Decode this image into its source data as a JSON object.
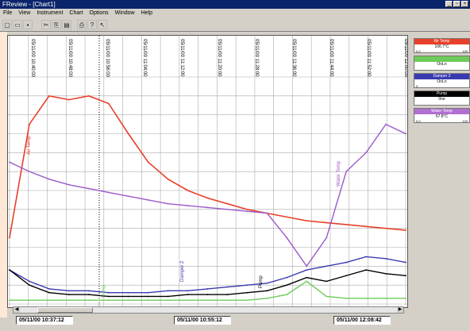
{
  "window": {
    "title": "FReview - [Chart1]",
    "controls_mdi": [
      "_",
      "▫",
      "×"
    ],
    "controls": [
      "_",
      "▫",
      "×"
    ]
  },
  "menu": {
    "items": [
      "File",
      "View",
      "Instrument",
      "Chart",
      "Options",
      "Window",
      "Help"
    ]
  },
  "toolbar": {
    "icons": [
      "new-icon",
      "open-icon",
      "save-icon",
      "cut-icon",
      "copy-icon",
      "paste-icon",
      "print-icon",
      "help-icon",
      "context-help-icon"
    ]
  },
  "chart": {
    "time_labels": [
      "05/11/00 10:40:00",
      "05/11/00 10:48:00",
      "05/11/00 10:56:00",
      "05/11/00 11:04:00",
      "05/11/00 11:12:00",
      "05/11/00 11:20:00",
      "05/11/00 11:28:00",
      "05/11/00 11:36:00",
      "05/11/00 11:44:00",
      "05/11/00 11:52:00",
      "05/11/00 12:00:00"
    ],
    "inline_labels": [
      "Air Temp",
      "Damper 2",
      "Pump",
      "Water Temp",
      "Pump"
    ],
    "timestamps": [
      "05/11/00 10:37:12",
      "05/11/00 10:55:12",
      "05/11/00 12:08:42"
    ]
  },
  "legend": [
    {
      "name": "Air Temp",
      "value": "106.7°C",
      "min": "0.0",
      "max": "120",
      "color": "#e8402a"
    },
    {
      "name": "",
      "value": "OnLn",
      "min": "",
      "max": "",
      "color": "#6ecb5a"
    },
    {
      "name": "Damper 2",
      "value": "OnLn",
      "min": "0",
      "max": "",
      "color": "#3a3ab0"
    },
    {
      "name": "Pump",
      "value": "0ne",
      "min": "",
      "max": "",
      "color": "#000000"
    },
    {
      "name": "Water Temp",
      "value": "67.8°C",
      "min": "0.0",
      "max": "120",
      "color": "#b070d0"
    }
  ],
  "chart_data": {
    "type": "line",
    "x": [
      0,
      1,
      2,
      3,
      4,
      5,
      6,
      7,
      8,
      9,
      10,
      11,
      12,
      13,
      14,
      15,
      16,
      17,
      18,
      19,
      20
    ],
    "series": [
      {
        "name": "Air Temp",
        "color": "#e8402a",
        "values": [
          35,
          95,
          110,
          108,
          110,
          106,
          90,
          75,
          66,
          60,
          56,
          53,
          50,
          48,
          46,
          44,
          43,
          42,
          41,
          40,
          39
        ]
      },
      {
        "name": "Water Temp",
        "color": "#9b59c9",
        "values": [
          75,
          70,
          66,
          63,
          61,
          59,
          57,
          55,
          53,
          52,
          51,
          50,
          49,
          48,
          35,
          20,
          35,
          70,
          80,
          95,
          90
        ]
      },
      {
        "name": "Damper 2",
        "color": "#3a3ab0",
        "values": [
          18,
          12,
          8,
          7,
          7,
          6,
          6,
          6,
          7,
          7,
          8,
          9,
          10,
          11,
          14,
          18,
          20,
          22,
          25,
          24,
          22
        ]
      },
      {
        "name": "Pump",
        "color": "#000000",
        "values": [
          18,
          10,
          6,
          5,
          5,
          4,
          4,
          4,
          4,
          5,
          5,
          5,
          6,
          7,
          10,
          14,
          12,
          15,
          18,
          16,
          15
        ]
      },
      {
        "name": "",
        "color": "#6ecb5a",
        "values": [
          2,
          2,
          2,
          2,
          2,
          2,
          2,
          2,
          2,
          2,
          2,
          2,
          2,
          3,
          5,
          12,
          4,
          3,
          3,
          3,
          3
        ]
      }
    ],
    "grid": true
  }
}
